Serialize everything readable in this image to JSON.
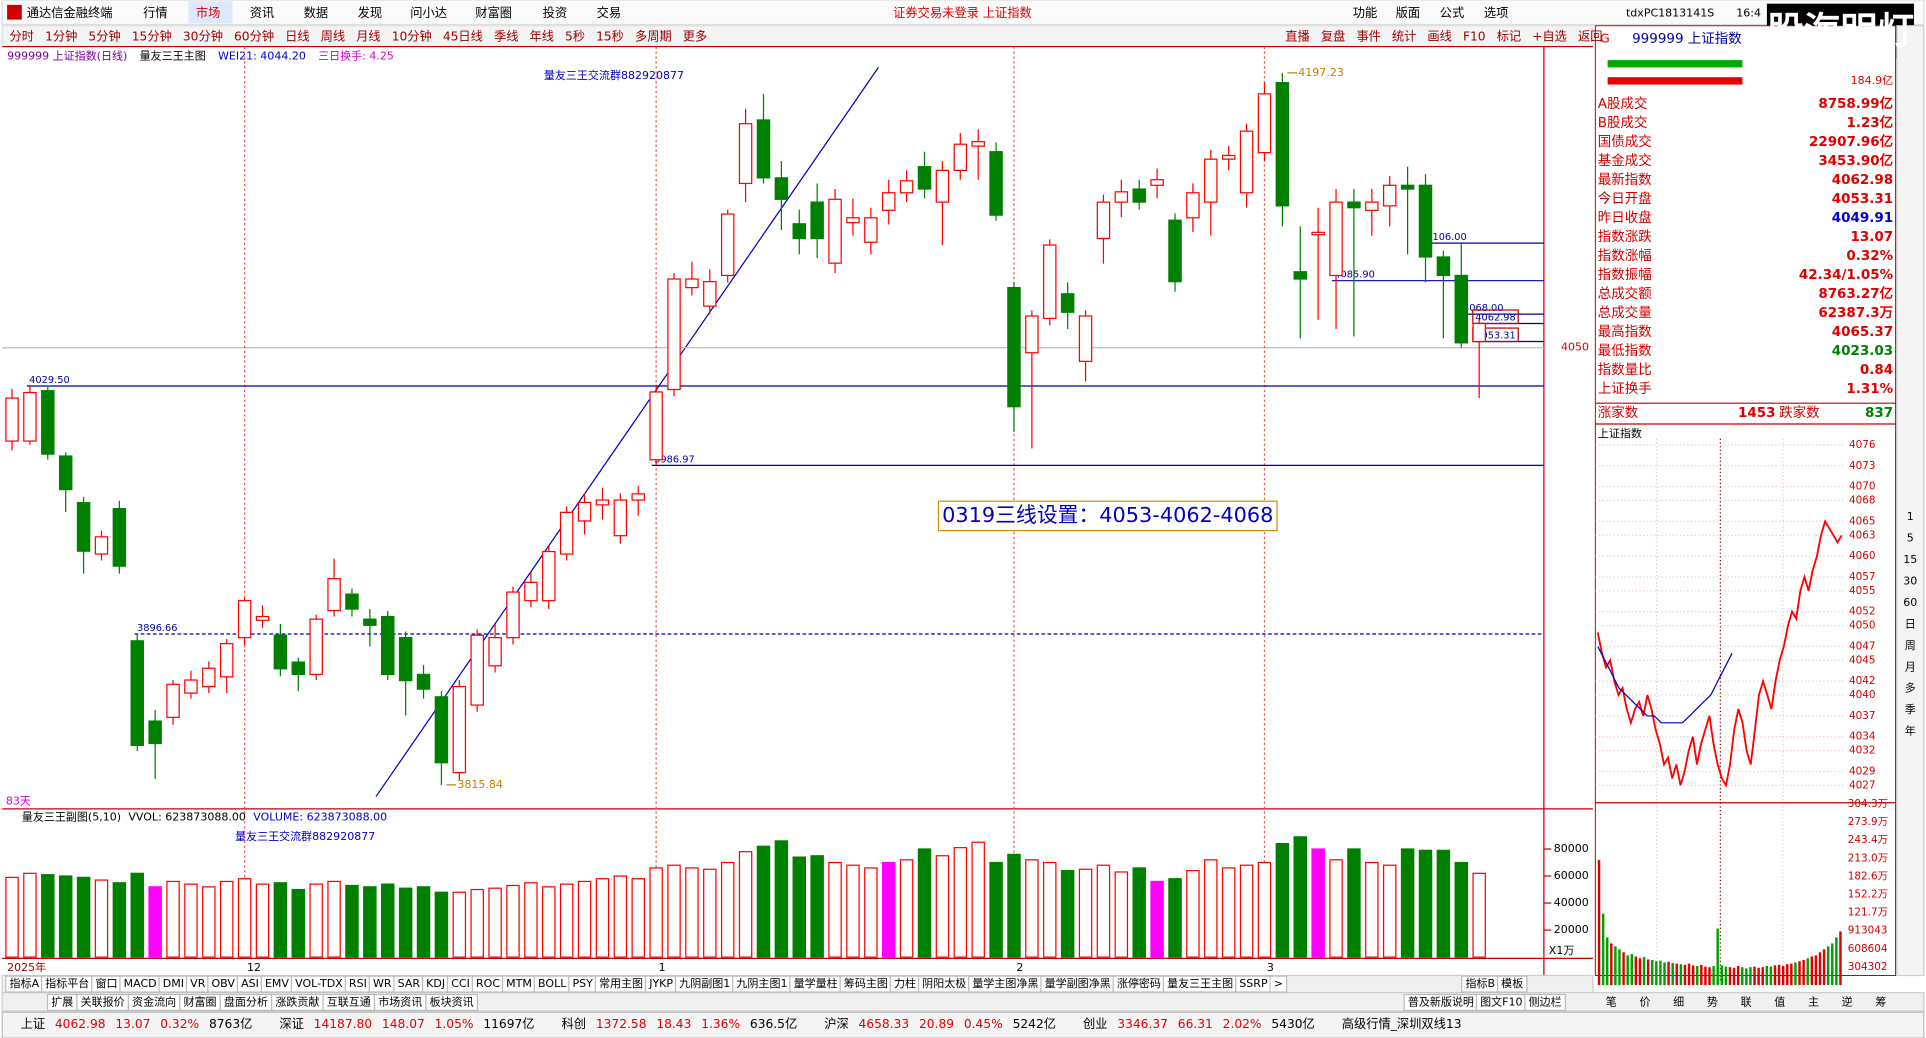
{
  "menu": {
    "app": "通达信金融终端",
    "items": [
      "行情",
      "市场",
      "资讯",
      "数据",
      "发现",
      "问小达",
      "财富圈",
      "投资",
      "交易"
    ],
    "status": "证券交易未登录  上证指数",
    "right": [
      "功能",
      "版面",
      "公式",
      "选项"
    ],
    "user": "tdxPC1813141S",
    "time": "16:4",
    "badge": "股海明灯"
  },
  "periods": [
    "分时",
    "1分钟",
    "5分钟",
    "15分钟",
    "30分钟",
    "60分钟",
    "日线",
    "周线",
    "月线",
    "10分钟",
    "45日线",
    "季线",
    "年线",
    "5秒",
    "15秒",
    "多周期",
    "更多"
  ],
  "tools": [
    "直播",
    "复盘",
    "事件",
    "统计",
    "画线",
    "F10",
    "标记",
    "+自选",
    "返回"
  ],
  "chart_data": [
    {
      "type": "candlestick",
      "title": "999999 上证指数(日线)",
      "indicator": "量友三王主图",
      "wei": "WEI21: 4044.20",
      "turnover": "三日换手: 4.25",
      "note": "量友三王交流群882920877",
      "annotation": "0319三线设置：4053-4062-4068",
      "days": "83天",
      "categories": [
        "2025年",
        null,
        null,
        null,
        null,
        null,
        null,
        null,
        null,
        null,
        null,
        null,
        null,
        "12",
        null,
        null,
        null,
        null,
        null,
        null,
        null,
        null,
        null,
        null,
        null,
        null,
        null,
        null,
        null,
        null,
        null,
        null,
        null,
        null,
        null,
        null,
        "1",
        null,
        null,
        null,
        null,
        null,
        null,
        null,
        null,
        null,
        null,
        null,
        null,
        null,
        null,
        null,
        null,
        null,
        null,
        null,
        "2",
        null,
        null,
        null,
        null,
        null,
        null,
        null,
        null,
        null,
        null,
        null,
        null,
        null,
        "3",
        null,
        null,
        null,
        null,
        null,
        null,
        null,
        null,
        null,
        null,
        null,
        null
      ],
      "open": [
        4000,
        4000,
        4027,
        3992,
        3967,
        3939.5,
        3963.8,
        3893,
        3850,
        3852,
        3865,
        3868.5,
        3873.7,
        3894.7,
        3904,
        3896,
        3881.6,
        3875,
        3909.2,
        3918,
        3904.6,
        3906,
        3894.7,
        3875,
        3863,
        3822.4,
        3858.6,
        3879.6,
        3894.7,
        3914.5,
        3914.5,
        3939.5,
        3957.2,
        3965.8,
        3949.3,
        3968.4,
        3990,
        4027.6,
        4082.2,
        4072.3,
        4088.7,
        4138,
        4172,
        4141,
        4116.4,
        4128,
        4095.3,
        4117,
        4106.5,
        4123.6,
        4133,
        4147,
        4128,
        4145,
        4158,
        4155,
        4082.2,
        4047.3,
        4065.7,
        4078.9,
        4042.7,
        4108.5,
        4128,
        4135,
        4137,
        4118.3,
        4119.6,
        4128,
        4151,
        4133,
        4154.5,
        4192,
        4090.7,
        4110.5,
        4088.7,
        4128,
        4123.6,
        4126,
        4137,
        4137,
        4098.6,
        4088.7,
        4053.31
      ],
      "high": [
        4028,
        4029.5,
        4029,
        3994,
        3970,
        3952,
        3968,
        3896.66,
        3856,
        3872,
        3877,
        3882,
        3894,
        3916,
        3912,
        3902,
        3884,
        3907,
        3937,
        3921,
        3910,
        3909,
        3898,
        3880,
        3866,
        3872,
        3899,
        3902,
        3922,
        3930,
        3944,
        3965,
        3972,
        3975,
        3972,
        3976,
        4030,
        4090,
        4096,
        4092,
        4124,
        4178,
        4186,
        4150,
        4124,
        4138,
        4135,
        4130,
        4125,
        4140,
        4145,
        4155,
        4150,
        4165,
        4167,
        4160,
        4085,
        4070,
        4108,
        4085,
        4070,
        4132,
        4140,
        4140,
        4146,
        4122,
        4138,
        4156,
        4158,
        4170,
        4192,
        4197.23,
        4115,
        4125,
        4135,
        4135,
        4135,
        4142,
        4147,
        4143,
        4102,
        4106,
        4065.37
      ],
      "low": [
        3995,
        3998,
        3990,
        3962,
        3929,
        3936,
        3929,
        3834,
        3819,
        3848,
        3862,
        3865,
        3865,
        3891,
        3900,
        3874,
        3866,
        3872,
        3906,
        3906,
        3890,
        3872,
        3853,
        3862,
        3815.84,
        3818,
        3855,
        3876,
        3891,
        3911,
        3910,
        3936,
        3950,
        3958,
        3945,
        3960,
        3986.97,
        4024,
        4078,
        4068,
        4085,
        4128,
        4138,
        4113,
        4100,
        4098,
        4090,
        4110,
        4100,
        4116,
        4128,
        4130,
        4105,
        4140,
        4140,
        4118,
        4005,
        3996,
        4062,
        4060,
        4032,
        4095,
        4120,
        4124,
        4130,
        4080,
        4112,
        4110,
        4145,
        4125,
        4150,
        4115,
        4055,
        4065,
        4060,
        4056,
        4110,
        4115,
        4100,
        4085,
        4055,
        4050,
        4023.03
      ],
      "close": [
        4023,
        4026,
        3993,
        3974,
        3941,
        3948.7,
        3933,
        3837,
        3838,
        3869.7,
        3872,
        3878.3,
        3891.5,
        3914.5,
        3906,
        3878,
        3875,
        3904.6,
        3926.3,
        3910,
        3901.3,
        3875,
        3871.7,
        3867.1,
        3827.7,
        3868.5,
        3896,
        3894.7,
        3919.1,
        3924.3,
        3940.8,
        3961.8,
        3967.1,
        3968.4,
        3968.4,
        3971.7,
        4026.3,
        4086.8,
        4086.8,
        4085.4,
        4121.6,
        4170,
        4141,
        4129.5,
        4108.5,
        4108.5,
        4129.5,
        4119.6,
        4119.6,
        4133,
        4139.4,
        4135,
        4145,
        4159,
        4160.4,
        4121,
        4018.4,
        4067,
        4105,
        4069,
        4067,
        4128,
        4133.5,
        4128,
        4140,
        4085.4,
        4133,
        4151,
        4153,
        4166,
        4186,
        4126,
        4086.8,
        4111.8,
        4128,
        4125,
        4128,
        4137,
        4135,
        4098.6,
        4088.7,
        4052.6,
        4062.98
      ],
      "up_color": "#ff0000",
      "down_color": "#008000",
      "ylim": [
        3803,
        4210
      ],
      "yticks": [
        4050
      ],
      "levels": [
        {
          "value": 4029.5,
          "label": "4029.50"
        },
        {
          "value": 3896.66,
          "label": "3896.66"
        },
        {
          "value": 3986.97,
          "label": "3986.97"
        },
        {
          "value": 4106,
          "label": "4106.00"
        },
        {
          "value": 4085.9,
          "label": "4085.90"
        },
        {
          "value": 4068,
          "label": "4068.00"
        },
        {
          "value": 4062.98,
          "label": "4062.98"
        },
        {
          "value": 4053.31,
          "label": "4053.31"
        }
      ],
      "extremes": [
        {
          "value": 4197.23,
          "label": "4197.23"
        },
        {
          "value": 3815.84,
          "label": "3815.84"
        }
      ]
    },
    {
      "type": "bar",
      "title": "量友三王副图(5,10)",
      "vvol": "VVOL: 623873088.00",
      "volume": "VOLUME: 623873088.00",
      "note": "量友三王交流群882920877",
      "unit": "X1万",
      "values": [
        59000,
        62000,
        61000,
        60000,
        59000,
        57000,
        55000,
        62000,
        52000,
        56000,
        54000,
        52000,
        56000,
        58000,
        54000,
        55000,
        50000,
        54000,
        56000,
        53000,
        52000,
        54000,
        51000,
        52000,
        48000,
        48000,
        50000,
        51000,
        53000,
        55000,
        52000,
        54000,
        56000,
        58000,
        60000,
        58000,
        66000,
        68000,
        66000,
        65000,
        70000,
        78000,
        82000,
        86000,
        74000,
        75000,
        70000,
        68000,
        66000,
        70000,
        72000,
        80000,
        75000,
        81000,
        85000,
        70000,
        76000,
        72000,
        70000,
        64000,
        65000,
        68000,
        63000,
        66000,
        56000,
        58000,
        64000,
        72000,
        66000,
        68000,
        70000,
        84000,
        89000,
        80000,
        72000,
        80000,
        70000,
        68000,
        80000,
        79000,
        79000,
        70000,
        62000
      ],
      "highlight": [
        8,
        49,
        64,
        73
      ],
      "highlight_color": "#ff00ff",
      "ylim": [
        0,
        107000
      ],
      "yticks": [
        20000,
        40000,
        60000,
        80000
      ]
    },
    {
      "type": "line",
      "title": "上证指数",
      "series": [
        {
          "color": "#ff0000",
          "values": [
            4049,
            4046,
            4044,
            4045,
            4042,
            4040,
            4041,
            4038,
            4036,
            4038,
            4039,
            4037,
            4040,
            4038,
            4035,
            4033,
            4030,
            4031,
            4028,
            4030,
            4027,
            4029,
            4032,
            4034,
            4030,
            4033,
            4035,
            4037,
            4033,
            4030,
            4028,
            4027,
            4030,
            4035,
            4038,
            4036,
            4032,
            4030,
            4035,
            4040,
            4042,
            4040,
            4038,
            4042,
            4045,
            4047,
            4050,
            4052,
            4051,
            4055,
            4057,
            4055,
            4058,
            4060,
            4063,
            4065,
            4064,
            4063,
            4062,
            4062.98
          ]
        },
        {
          "color": "#0000c0",
          "values": [
            4047,
            4045,
            4043,
            4041,
            4040,
            4039,
            4038,
            4037,
            4037,
            4036,
            4036,
            4036,
            4036,
            4037,
            4038,
            4039,
            4040,
            4042,
            4044,
            4046
          ]
        }
      ],
      "ylim": [
        4024.5,
        4076.9
      ],
      "yticks": [
        4076,
        4073,
        4070,
        4068,
        4065,
        4063,
        4060,
        4057,
        4055,
        4052,
        4050,
        4047,
        4045,
        4042,
        4040,
        4037,
        4034,
        4032,
        4029,
        4027
      ],
      "volume": [
        2100000,
        1200000,
        800000,
        700000,
        650000,
        600000,
        550000,
        500000,
        520000,
        480000,
        450000,
        470000,
        430000,
        420000,
        400000,
        410000,
        380000,
        390000,
        370000,
        360000,
        350000,
        340000,
        360000,
        330000,
        320000,
        340000,
        310000,
        300000,
        320000,
        950000,
        330000,
        310000,
        300000,
        290000,
        320000,
        300000,
        280000,
        300000,
        310000,
        290000,
        300000,
        320000,
        310000,
        330000,
        340000,
        320000,
        350000,
        360000,
        380000,
        400000,
        420000,
        450000,
        480000,
        500000,
        550000,
        600000,
        650000,
        700000,
        800000,
        900000
      ],
      "vol_ylim": [
        0,
        3043000
      ],
      "vol_ticks": [
        {
          "value": 3043000,
          "label": "304.3万"
        },
        {
          "value": 2739000,
          "label": "273.9万"
        },
        {
          "value": 2434000,
          "label": "243.4万"
        },
        {
          "value": 2130000,
          "label": "213.0万"
        },
        {
          "value": 1826000,
          "label": "182.6万"
        },
        {
          "value": 1522000,
          "label": "152.2万"
        },
        {
          "value": 1217000,
          "label": "121.7万"
        },
        {
          "value": 913043,
          "label": "913043"
        },
        {
          "value": 608604,
          "label": "608604"
        },
        {
          "value": 304302,
          "label": "304302"
        }
      ]
    }
  ],
  "quote": {
    "mark": "G",
    "code": "999999 上证指数",
    "top": "184.9亿",
    "rows": [
      {
        "label": "A股成交",
        "value": "8758.99亿",
        "color": "#e00000"
      },
      {
        "label": "B股成交",
        "value": "1.23亿",
        "color": "#e00000"
      },
      {
        "label": "国债成交",
        "value": "22907.96亿",
        "color": "#e00000"
      },
      {
        "label": "基金成交",
        "value": "3453.90亿",
        "color": "#e00000"
      },
      {
        "label": "最新指数",
        "value": "4062.98",
        "color": "#e00000"
      },
      {
        "label": "今日开盘",
        "value": "4053.31",
        "color": "#e00000"
      },
      {
        "label": "昨日收盘",
        "value": "4049.91",
        "color": "#0000d0"
      },
      {
        "label": "指数涨跌",
        "value": "13.07",
        "color": "#e00000"
      },
      {
        "label": "指数涨幅",
        "value": "0.32%",
        "color": "#e00000"
      },
      {
        "label": "指数振幅",
        "value": "42.34/1.05%",
        "color": "#e00000"
      },
      {
        "label": "总成交额",
        "value": "8763.27亿",
        "color": "#e00000"
      },
      {
        "label": "总成交量",
        "value": "62387.3万",
        "color": "#e00000"
      },
      {
        "label": "最高指数",
        "value": "4065.37",
        "color": "#e00000"
      },
      {
        "label": "最低指数",
        "value": "4023.03",
        "color": "#008000"
      },
      {
        "label": "指数量比",
        "value": "0.84",
        "color": "#e00000"
      },
      {
        "label": "上证换手",
        "value": "1.31%",
        "color": "#e00000"
      }
    ],
    "up_label": "涨家数",
    "up": "1453",
    "down_label": "跌家数",
    "down": "837"
  },
  "side_icons": [
    "1",
    "5",
    "15",
    "30",
    "60",
    "日",
    "周",
    "月",
    "多",
    "季",
    "年"
  ],
  "indicator_tabs": [
    "指标A",
    "指标平台",
    "窗口",
    "MACD",
    "DMI",
    "VR",
    "OBV",
    "ASI",
    "EMV",
    "VOL-TDX",
    "RSI",
    "WR",
    "SAR",
    "KDJ",
    "CCI",
    "ROC",
    "MTM",
    "BOLL",
    "PSY",
    "常用主图",
    "JYKP",
    "九阴副图1",
    "九阴主图1",
    "量学量柱",
    "筹码主图",
    "力柱",
    "阴阳太极",
    "量学主图净黑",
    "量学副图净黑",
    "涨停密码",
    "量友三王主图",
    "SSRP",
    ">"
  ],
  "indicator_right": [
    "指标B",
    "模板"
  ],
  "tabs2": [
    "扩展",
    "关联报价",
    "资金流向",
    "财富圈",
    "盘面分析",
    "涨跌贡献",
    "互联互通",
    "市场资讯",
    "板块资讯"
  ],
  "tabs2_right": [
    "普及新版说明",
    "图文F10",
    "侧边栏"
  ],
  "side_tabs": [
    "笔",
    "价",
    "细",
    "势",
    "联",
    "值",
    "主",
    "逆",
    "筹"
  ],
  "status_bar": [
    {
      "text": "上证",
      "color": "#000"
    },
    {
      "text": "4062.98",
      "color": "#e00000"
    },
    {
      "text": "13.07",
      "color": "#e00000"
    },
    {
      "text": "0.32%",
      "color": "#e00000"
    },
    {
      "text": "8763亿",
      "color": "#000"
    },
    {
      "text": "深证",
      "color": "#000"
    },
    {
      "text": "14187.80",
      "color": "#e00000"
    },
    {
      "text": "148.07",
      "color": "#e00000"
    },
    {
      "text": "1.05%",
      "color": "#e00000"
    },
    {
      "text": "11697亿",
      "color": "#000"
    },
    {
      "text": "科创",
      "color": "#000"
    },
    {
      "text": "1372.58",
      "color": "#e00000"
    },
    {
      "text": "18.43",
      "color": "#e00000"
    },
    {
      "text": "1.36%",
      "color": "#e00000"
    },
    {
      "text": "636.5亿",
      "color": "#000"
    },
    {
      "text": "沪深",
      "color": "#000"
    },
    {
      "text": "4658.33",
      "color": "#e00000"
    },
    {
      "text": "20.89",
      "color": "#e00000"
    },
    {
      "text": "0.45%",
      "color": "#e00000"
    },
    {
      "text": "5242亿",
      "color": "#000"
    },
    {
      "text": "创业",
      "color": "#000"
    },
    {
      "text": "3346.37",
      "color": "#e00000"
    },
    {
      "text": "66.31",
      "color": "#e00000"
    },
    {
      "text": "2.02%",
      "color": "#e00000"
    },
    {
      "text": "5430亿",
      "color": "#000"
    },
    {
      "text": "高级行情_深圳双线13",
      "color": "#000"
    }
  ]
}
